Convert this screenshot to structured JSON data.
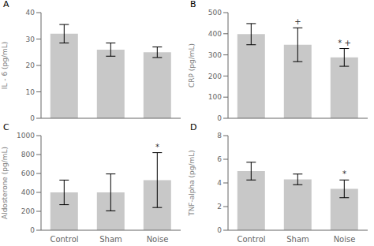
{
  "chart_data": [
    {
      "type": "bar",
      "title": "A",
      "ylabel": "IL - 6 (pg/mL)",
      "categories": [
        "Control",
        "Sham",
        "Noise"
      ],
      "values": [
        32,
        26,
        25
      ],
      "errors": [
        3.5,
        2.5,
        2.0
      ],
      "ylim": [
        0,
        40
      ],
      "yticks": [
        0,
        10,
        20,
        30,
        40
      ],
      "color": "#c8c8c8",
      "tick_labels": "y",
      "annotations": []
    },
    {
      "type": "bar",
      "title": "B",
      "ylabel": "CRP (pg/mL)",
      "categories": [
        "Control",
        "Sham",
        "Noise"
      ],
      "values": [
        398,
        348,
        288
      ],
      "errors": [
        50,
        80,
        42
      ],
      "ylim": [
        0,
        500
      ],
      "yticks": [
        0,
        100,
        200,
        300,
        400,
        500
      ],
      "color": "#c8c8c8",
      "tick_labels": "y",
      "annotations": [
        {
          "category": "Sham",
          "text": "+"
        },
        {
          "category": "Noise",
          "text": "* +"
        }
      ]
    },
    {
      "type": "bar",
      "title": "C",
      "ylabel": "Aldosterone (pg/mL)",
      "categories": [
        "Control",
        "Sham",
        "Noise"
      ],
      "values": [
        400,
        400,
        530
      ],
      "errors": [
        130,
        195,
        290
      ],
      "ylim": [
        0,
        1000
      ],
      "yticks": [
        0,
        200,
        400,
        600,
        800,
        1000
      ],
      "color": "#c8c8c8",
      "annotations": [
        {
          "category": "Noise",
          "text": "*"
        }
      ]
    },
    {
      "type": "bar",
      "title": "D",
      "ylabel": "TNF-alpha (pg/mL)",
      "categories": [
        "Control",
        "Sham",
        "Noise"
      ],
      "values": [
        5.0,
        4.3,
        3.5
      ],
      "errors": [
        0.75,
        0.45,
        0.75
      ],
      "ylim": [
        0,
        8
      ],
      "yticks": [
        0,
        2,
        4,
        6,
        8
      ],
      "color": "#c8c8c8",
      "annotations": [
        {
          "category": "Noise",
          "text": "*"
        }
      ]
    }
  ]
}
